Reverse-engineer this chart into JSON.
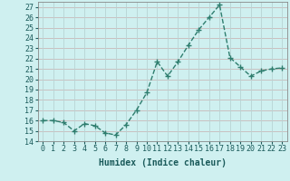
{
  "xlabel": "Humidex (Indice chaleur)",
  "x": [
    0,
    1,
    2,
    3,
    4,
    5,
    6,
    7,
    8,
    9,
    10,
    11,
    12,
    13,
    14,
    15,
    16,
    17,
    18,
    19,
    20,
    21,
    22,
    23
  ],
  "y": [
    16,
    16,
    15.8,
    15,
    15.7,
    15.5,
    14.8,
    14.6,
    15.6,
    17,
    18.7,
    21.7,
    20.3,
    21.7,
    23.3,
    24.8,
    26,
    27.2,
    22.1,
    21.2,
    20.3,
    20.8,
    21.0,
    21.1
  ],
  "line_color": "#2e7d6e",
  "marker": "+",
  "marker_size": 4,
  "bg_color": "#cff0f0",
  "grid_color_h": "#c8b8b8",
  "grid_color_v": "#b8d4d4",
  "ylim": [
    14,
    27.5
  ],
  "xlim": [
    -0.5,
    23.5
  ],
  "yticks": [
    14,
    15,
    16,
    17,
    18,
    19,
    20,
    21,
    22,
    23,
    24,
    25,
    26,
    27
  ],
  "xticks": [
    0,
    1,
    2,
    3,
    4,
    5,
    6,
    7,
    8,
    9,
    10,
    11,
    12,
    13,
    14,
    15,
    16,
    17,
    18,
    19,
    20,
    21,
    22,
    23
  ],
  "xlabel_fontsize": 7,
  "tick_fontsize": 6,
  "line_width": 1.0
}
